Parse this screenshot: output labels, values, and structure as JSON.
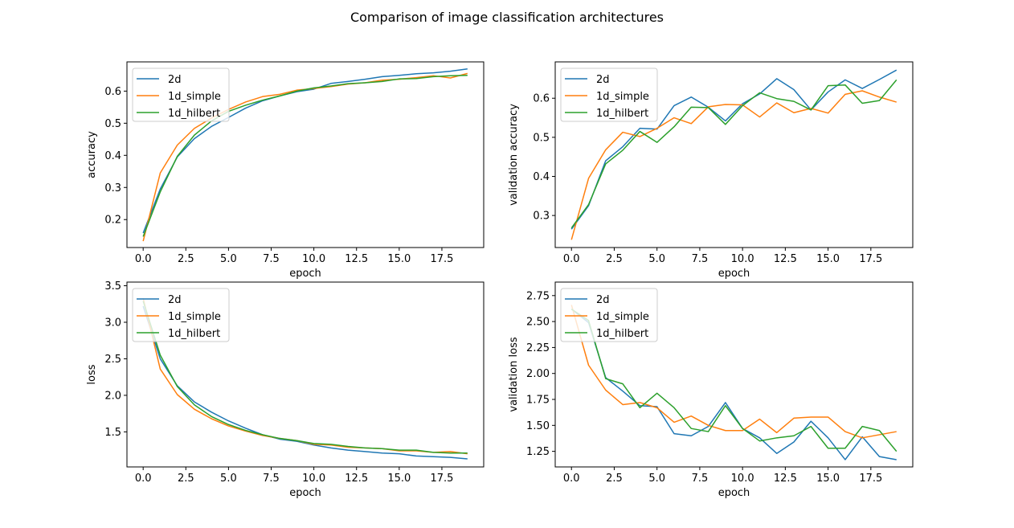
{
  "figure_title": "Comparison of image classification architectures",
  "colors": {
    "2d": "#1f77b4",
    "1d_simple": "#ff7f0e",
    "1d_hilbert": "#2ca02c"
  },
  "chart_data": [
    {
      "type": "line",
      "xlabel": "epoch",
      "ylabel": "accuracy",
      "xlim": [
        -0.95,
        19.95
      ],
      "ylim": [
        0.113,
        0.691
      ],
      "xticks": [
        0,
        2.5,
        5,
        7.5,
        10,
        12.5,
        15,
        17.5
      ],
      "xtick_labels": [
        "0.0",
        "2.5",
        "5.0",
        "7.5",
        "10.0",
        "12.5",
        "15.0",
        "17.5"
      ],
      "yticks": [
        0.2,
        0.3,
        0.4,
        0.5,
        0.6
      ],
      "ytick_labels": [
        "0.2",
        "0.3",
        "0.4",
        "0.5",
        "0.6"
      ],
      "legend": "upper-left",
      "x": [
        0,
        1,
        2,
        3,
        4,
        5,
        6,
        7,
        8,
        9,
        10,
        11,
        12,
        13,
        14,
        15,
        16,
        17,
        18,
        19
      ],
      "series": [
        {
          "name": "2d",
          "color": "#1f77b4",
          "values": [
            0.158,
            0.295,
            0.395,
            0.452,
            0.49,
            0.518,
            0.547,
            0.57,
            0.585,
            0.598,
            0.606,
            0.624,
            0.63,
            0.637,
            0.645,
            0.649,
            0.654,
            0.657,
            0.662,
            0.669
          ]
        },
        {
          "name": "1d_simple",
          "color": "#ff7f0e",
          "values": [
            0.133,
            0.345,
            0.432,
            0.484,
            0.516,
            0.543,
            0.566,
            0.583,
            0.59,
            0.603,
            0.608,
            0.614,
            0.622,
            0.626,
            0.634,
            0.637,
            0.642,
            0.648,
            0.641,
            0.655
          ]
        },
        {
          "name": "1d_hilbert",
          "color": "#2ca02c",
          "values": [
            0.147,
            0.286,
            0.397,
            0.463,
            0.507,
            0.537,
            0.556,
            0.572,
            0.585,
            0.6,
            0.61,
            0.616,
            0.623,
            0.626,
            0.63,
            0.638,
            0.639,
            0.645,
            0.648,
            0.649
          ]
        }
      ]
    },
    {
      "type": "line",
      "xlabel": "epoch",
      "ylabel": "validation accuracy",
      "xlim": [
        -0.95,
        19.95
      ],
      "ylim": [
        0.218,
        0.693
      ],
      "xticks": [
        0,
        2.5,
        5,
        7.5,
        10,
        12.5,
        15,
        17.5
      ],
      "xtick_labels": [
        "0.0",
        "2.5",
        "5.0",
        "7.5",
        "10.0",
        "12.5",
        "15.0",
        "17.5"
      ],
      "yticks": [
        0.3,
        0.4,
        0.5,
        0.6
      ],
      "ytick_labels": [
        "0.3",
        "0.4",
        "0.5",
        "0.6"
      ],
      "legend": "upper-left",
      "x": [
        0,
        1,
        2,
        3,
        4,
        5,
        6,
        7,
        8,
        9,
        10,
        11,
        12,
        13,
        14,
        15,
        16,
        17,
        18,
        19
      ],
      "series": [
        {
          "name": "2d",
          "color": "#1f77b4",
          "values": [
            0.265,
            0.325,
            0.44,
            0.476,
            0.523,
            0.521,
            0.581,
            0.603,
            0.577,
            0.542,
            0.586,
            0.611,
            0.65,
            0.622,
            0.57,
            0.616,
            0.647,
            0.625,
            0.648,
            0.672
          ]
        },
        {
          "name": "1d_simple",
          "color": "#ff7f0e",
          "values": [
            0.238,
            0.395,
            0.468,
            0.513,
            0.502,
            0.523,
            0.55,
            0.535,
            0.578,
            0.584,
            0.583,
            0.552,
            0.588,
            0.563,
            0.574,
            0.562,
            0.61,
            0.619,
            0.603,
            0.59
          ]
        },
        {
          "name": "1d_hilbert",
          "color": "#2ca02c",
          "values": [
            0.268,
            0.328,
            0.432,
            0.467,
            0.515,
            0.487,
            0.527,
            0.577,
            0.576,
            0.533,
            0.581,
            0.614,
            0.599,
            0.592,
            0.57,
            0.632,
            0.634,
            0.587,
            0.594,
            0.647
          ]
        }
      ]
    },
    {
      "type": "line",
      "xlabel": "epoch",
      "ylabel": "loss",
      "xlim": [
        -0.95,
        19.95
      ],
      "ylim": [
        1.02,
        3.55
      ],
      "xticks": [
        0,
        2.5,
        5,
        7.5,
        10,
        12.5,
        15,
        17.5
      ],
      "xtick_labels": [
        "0.0",
        "2.5",
        "5.0",
        "7.5",
        "10.0",
        "12.5",
        "15.0",
        "17.5"
      ],
      "yticks": [
        1.5,
        2.0,
        2.5,
        3.0,
        3.5
      ],
      "ytick_labels": [
        "1.5",
        "2.0",
        "2.5",
        "3.0",
        "3.5"
      ],
      "legend": "upper-left",
      "x": [
        0,
        1,
        2,
        3,
        4,
        5,
        6,
        7,
        8,
        9,
        10,
        11,
        12,
        13,
        14,
        15,
        16,
        17,
        18,
        19
      ],
      "series": [
        {
          "name": "2d",
          "color": "#1f77b4",
          "values": [
            3.22,
            2.5,
            2.13,
            1.91,
            1.77,
            1.65,
            1.55,
            1.46,
            1.4,
            1.37,
            1.32,
            1.28,
            1.25,
            1.23,
            1.21,
            1.2,
            1.17,
            1.16,
            1.15,
            1.13
          ]
        },
        {
          "name": "1d_simple",
          "color": "#ff7f0e",
          "values": [
            3.33,
            2.36,
            2.01,
            1.81,
            1.68,
            1.58,
            1.51,
            1.45,
            1.41,
            1.38,
            1.33,
            1.32,
            1.29,
            1.28,
            1.27,
            1.24,
            1.24,
            1.22,
            1.23,
            1.2
          ]
        },
        {
          "name": "1d_hilbert",
          "color": "#2ca02c",
          "values": [
            3.29,
            2.55,
            2.12,
            1.87,
            1.71,
            1.6,
            1.52,
            1.46,
            1.41,
            1.38,
            1.34,
            1.33,
            1.3,
            1.28,
            1.27,
            1.25,
            1.25,
            1.22,
            1.21,
            1.21
          ]
        }
      ]
    },
    {
      "type": "line",
      "xlabel": "epoch",
      "ylabel": "validation loss",
      "xlim": [
        -0.95,
        19.95
      ],
      "ylim": [
        1.1,
        2.88
      ],
      "xticks": [
        0,
        2.5,
        5,
        7.5,
        10,
        12.5,
        15,
        17.5
      ],
      "xtick_labels": [
        "0.0",
        "2.5",
        "5.0",
        "7.5",
        "10.0",
        "12.5",
        "15.0",
        "17.5"
      ],
      "yticks": [
        1.25,
        1.5,
        1.75,
        2.0,
        2.25,
        2.5,
        2.75
      ],
      "ytick_labels": [
        "1.25",
        "1.50",
        "1.75",
        "2.00",
        "2.25",
        "2.50",
        "2.75"
      ],
      "legend": "upper-left",
      "x": [
        0,
        1,
        2,
        3,
        4,
        5,
        6,
        7,
        8,
        9,
        10,
        11,
        12,
        13,
        14,
        15,
        16,
        17,
        18,
        19
      ],
      "series": [
        {
          "name": "2d",
          "color": "#1f77b4",
          "values": [
            2.62,
            2.49,
            1.96,
            1.83,
            1.69,
            1.68,
            1.42,
            1.4,
            1.49,
            1.72,
            1.47,
            1.38,
            1.23,
            1.34,
            1.54,
            1.38,
            1.17,
            1.39,
            1.2,
            1.17
          ]
        },
        {
          "name": "1d_simple",
          "color": "#ff7f0e",
          "values": [
            2.66,
            2.08,
            1.84,
            1.7,
            1.72,
            1.67,
            1.53,
            1.59,
            1.5,
            1.45,
            1.45,
            1.56,
            1.43,
            1.57,
            1.58,
            1.58,
            1.44,
            1.38,
            1.41,
            1.44
          ]
        },
        {
          "name": "1d_hilbert",
          "color": "#2ca02c",
          "values": [
            2.62,
            2.51,
            1.95,
            1.9,
            1.67,
            1.81,
            1.67,
            1.47,
            1.44,
            1.69,
            1.47,
            1.35,
            1.38,
            1.4,
            1.49,
            1.28,
            1.28,
            1.49,
            1.45,
            1.25
          ]
        }
      ]
    }
  ]
}
